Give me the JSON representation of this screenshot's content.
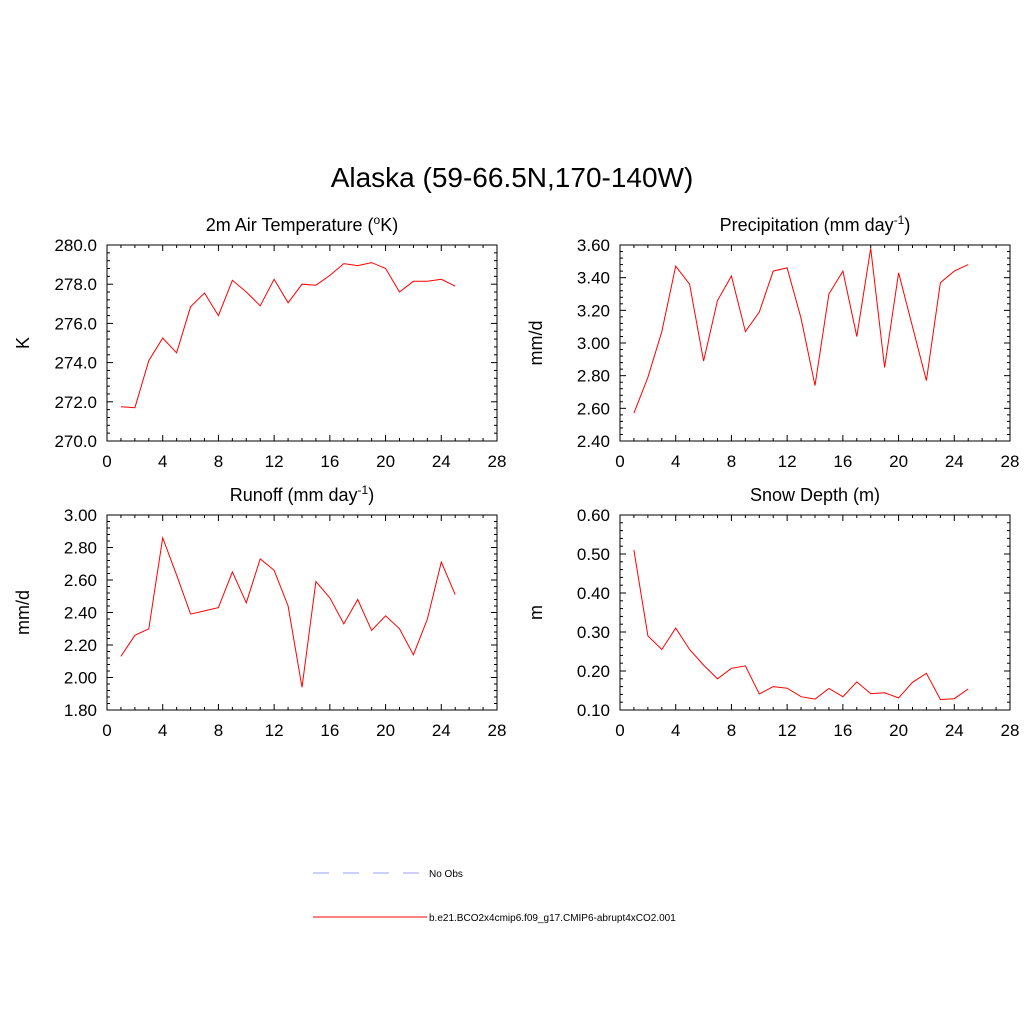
{
  "title": "Alaska (59-66.5N,170-140W)",
  "series_color": "#ff0000",
  "obs_color": "#9c9cff",
  "chart_data": [
    {
      "type": "line",
      "title": "2m Air Temperature (oK)",
      "title_main": "2m Air Temperature (",
      "title_sup": "o",
      "title_end": "K)",
      "ylabel": "K",
      "xlim": [
        0,
        28
      ],
      "ylim": [
        270,
        280
      ],
      "xticks": [
        0,
        4,
        8,
        12,
        16,
        20,
        24,
        28
      ],
      "yticks": [
        "270.0",
        "272.0",
        "274.0",
        "276.0",
        "278.0",
        "280.0"
      ],
      "x": [
        1,
        2,
        3,
        4,
        5,
        6,
        7,
        8,
        9,
        10,
        11,
        12,
        13,
        14,
        15,
        16,
        17,
        18,
        19,
        20,
        21,
        22,
        23,
        24,
        25
      ],
      "series": [
        {
          "name": "b.e21.BCO2x4cmip6.f09_g17.CMIP6-abrupt4xCO2.001",
          "values": [
            271.75,
            271.7,
            274.1,
            275.25,
            274.5,
            276.85,
            277.55,
            276.4,
            278.2,
            277.6,
            276.9,
            278.25,
            277.05,
            278.0,
            277.95,
            278.45,
            279.05,
            278.95,
            279.1,
            278.8,
            277.6,
            278.15,
            278.15,
            278.25,
            277.9
          ]
        }
      ]
    },
    {
      "type": "line",
      "title": "Precipitation (mm day-1)",
      "title_main": "Precipitation (mm day",
      "title_sup": "-1",
      "title_end": ")",
      "ylabel": "mm/d",
      "xlim": [
        0,
        28
      ],
      "ylim": [
        2.4,
        3.6
      ],
      "xticks": [
        0,
        4,
        8,
        12,
        16,
        20,
        24,
        28
      ],
      "yticks": [
        "2.40",
        "2.60",
        "2.80",
        "3.00",
        "3.20",
        "3.40",
        "3.60"
      ],
      "x": [
        1,
        2,
        3,
        4,
        5,
        6,
        7,
        8,
        9,
        10,
        11,
        12,
        13,
        14,
        15,
        16,
        17,
        18,
        19,
        20,
        21,
        22,
        23,
        24,
        25
      ],
      "series": [
        {
          "name": "b.e21.BCO2x4cmip6.f09_g17.CMIP6-abrupt4xCO2.001",
          "values": [
            2.57,
            2.79,
            3.07,
            3.47,
            3.36,
            2.89,
            3.26,
            3.41,
            3.07,
            3.19,
            3.44,
            3.46,
            3.15,
            2.74,
            3.3,
            3.44,
            3.04,
            3.58,
            2.85,
            3.43,
            3.1,
            2.77,
            3.37,
            3.44,
            3.48
          ]
        }
      ]
    },
    {
      "type": "line",
      "title": "Runoff (mm day-1)",
      "title_main": "Runoff (mm day",
      "title_sup": "-1",
      "title_end": ")",
      "ylabel": "mm/d",
      "xlim": [
        0,
        28
      ],
      "ylim": [
        1.8,
        3.0
      ],
      "xticks": [
        0,
        4,
        8,
        12,
        16,
        20,
        24,
        28
      ],
      "yticks": [
        "1.80",
        "2.00",
        "2.20",
        "2.40",
        "2.60",
        "2.80",
        "3.00"
      ],
      "x": [
        1,
        2,
        3,
        4,
        5,
        6,
        7,
        8,
        9,
        10,
        11,
        12,
        13,
        14,
        15,
        16,
        17,
        18,
        19,
        20,
        21,
        22,
        23,
        24,
        25
      ],
      "series": [
        {
          "name": "b.e21.BCO2x4cmip6.f09_g17.CMIP6-abrupt4xCO2.001",
          "values": [
            2.13,
            2.26,
            2.3,
            2.86,
            2.63,
            2.39,
            2.41,
            2.43,
            2.65,
            2.46,
            2.73,
            2.66,
            2.44,
            1.94,
            2.59,
            2.49,
            2.33,
            2.48,
            2.29,
            2.38,
            2.3,
            2.14,
            2.36,
            2.71,
            2.51
          ]
        }
      ]
    },
    {
      "type": "line",
      "title": "Snow Depth (m)",
      "title_main": "Snow Depth (m)",
      "title_sup": "",
      "title_end": "",
      "ylabel": "m",
      "xlim": [
        0,
        28
      ],
      "ylim": [
        0.1,
        0.6
      ],
      "xticks": [
        0,
        4,
        8,
        12,
        16,
        20,
        24,
        28
      ],
      "yticks": [
        "0.10",
        "0.20",
        "0.30",
        "0.40",
        "0.50",
        "0.60"
      ],
      "x": [
        1,
        2,
        3,
        4,
        5,
        6,
        7,
        8,
        9,
        10,
        11,
        12,
        13,
        14,
        15,
        16,
        17,
        18,
        19,
        20,
        21,
        22,
        23,
        24,
        25
      ],
      "series": [
        {
          "name": "b.e21.BCO2x4cmip6.f09_g17.CMIP6-abrupt4xCO2.001",
          "values": [
            0.51,
            0.29,
            0.255,
            0.31,
            0.255,
            0.215,
            0.18,
            0.207,
            0.213,
            0.141,
            0.16,
            0.156,
            0.134,
            0.128,
            0.155,
            0.134,
            0.172,
            0.142,
            0.144,
            0.131,
            0.171,
            0.194,
            0.127,
            0.129,
            0.154
          ]
        }
      ]
    }
  ],
  "legend": [
    {
      "label": "No Obs",
      "style": "dashed"
    },
    {
      "label": "b.e21.BCO2x4cmip6.f09_g17.CMIP6-abrupt4xCO2.001",
      "style": "solid"
    }
  ]
}
